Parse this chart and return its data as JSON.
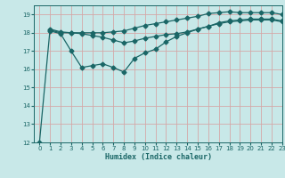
{
  "title": "",
  "xlabel": "Humidex (Indice chaleur)",
  "bg_color": "#c8e8e8",
  "grid_color": "#d4a8a8",
  "line_color": "#1a6666",
  "xmin": -0.5,
  "xmax": 23,
  "ymin": 12,
  "ymax": 19.5,
  "x_ticks": [
    0,
    1,
    2,
    3,
    4,
    5,
    6,
    7,
    8,
    9,
    10,
    11,
    12,
    13,
    14,
    15,
    16,
    17,
    18,
    19,
    20,
    21,
    22,
    23
  ],
  "y_ticks": [
    12,
    13,
    14,
    15,
    16,
    17,
    18,
    19
  ],
  "line1_x": [
    0,
    1,
    2,
    3,
    4,
    5,
    6,
    7,
    8,
    9,
    10,
    11,
    12,
    13,
    14,
    15,
    16,
    17,
    18,
    19,
    20,
    21,
    22,
    23
  ],
  "line1_y": [
    12.0,
    18.2,
    18.05,
    18.0,
    18.0,
    18.0,
    18.0,
    18.05,
    18.1,
    18.25,
    18.4,
    18.5,
    18.6,
    18.7,
    18.8,
    18.9,
    19.05,
    19.1,
    19.15,
    19.1,
    19.1,
    19.1,
    19.1,
    19.0
  ],
  "line2_x": [
    1,
    2,
    3,
    4,
    5,
    6,
    7,
    8,
    9,
    10,
    11,
    12,
    13,
    14,
    15,
    16,
    17,
    18,
    19,
    20,
    21,
    22,
    23
  ],
  "line2_y": [
    18.15,
    18.0,
    18.0,
    17.95,
    17.85,
    17.75,
    17.6,
    17.45,
    17.55,
    17.7,
    17.8,
    17.9,
    17.95,
    18.05,
    18.2,
    18.35,
    18.55,
    18.65,
    18.7,
    18.75,
    18.75,
    18.75,
    18.65
  ],
  "line3_x": [
    1,
    2,
    3,
    4,
    5,
    6,
    7,
    8,
    9,
    10,
    11,
    12,
    13,
    14,
    15,
    16,
    17,
    18,
    19,
    20,
    21,
    22,
    23
  ],
  "line3_y": [
    18.1,
    17.95,
    17.0,
    16.1,
    16.2,
    16.3,
    16.1,
    15.85,
    16.6,
    16.9,
    17.1,
    17.5,
    17.8,
    18.0,
    18.2,
    18.35,
    18.5,
    18.6,
    18.65,
    18.7,
    18.7,
    18.7,
    18.6
  ],
  "marker": "D",
  "markersize": 2.5,
  "linewidth": 0.9
}
